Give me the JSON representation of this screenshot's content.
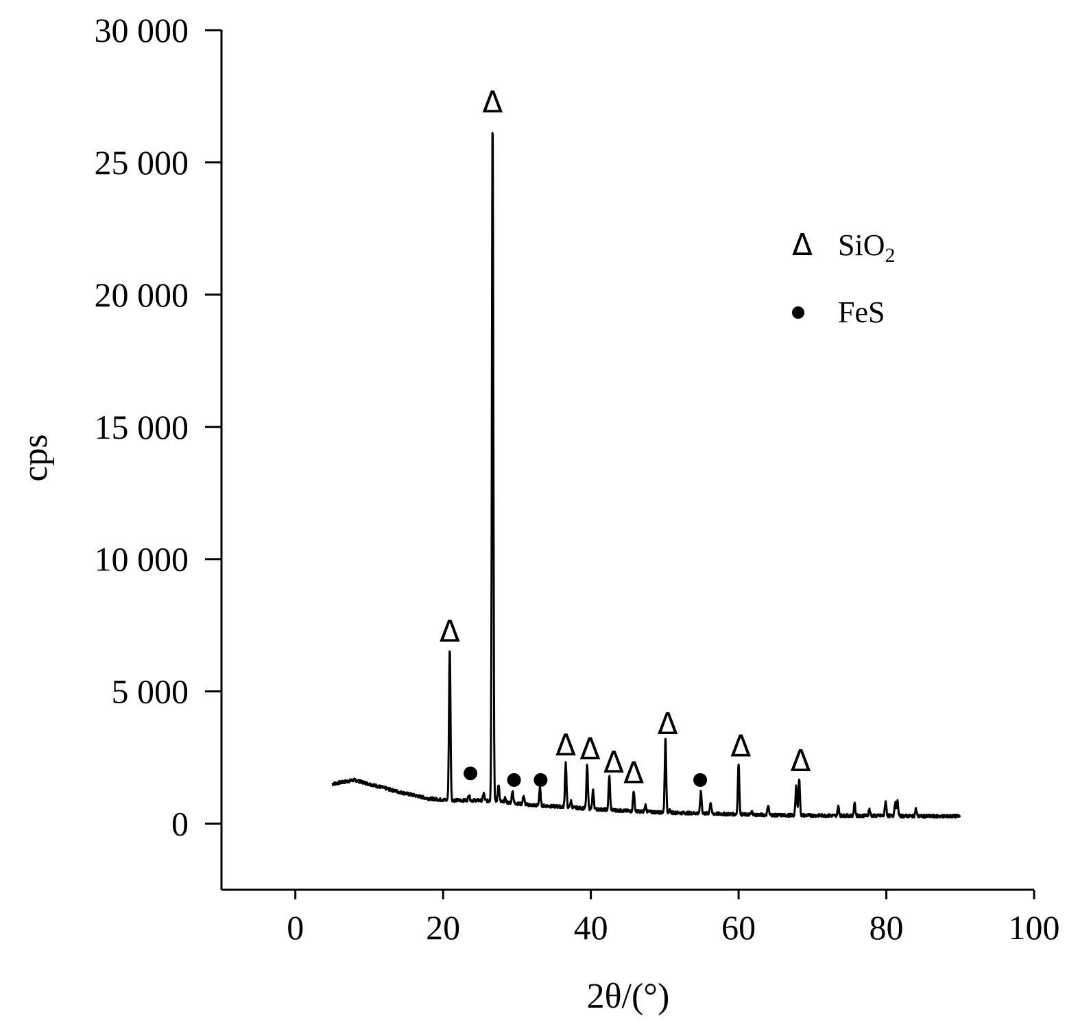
{
  "chart_data": {
    "type": "line",
    "title": "",
    "xlabel": "2θ/(°)",
    "ylabel": "cps",
    "xlim": [
      -10,
      100
    ],
    "ylim": [
      -2500,
      30000
    ],
    "x_ticks": [
      0,
      20,
      40,
      60,
      80,
      100
    ],
    "x_tick_labels": [
      "0",
      "20",
      "40",
      "60",
      "80",
      "100"
    ],
    "y_ticks": [
      0,
      5000,
      10000,
      15000,
      20000,
      25000,
      30000
    ],
    "y_tick_labels": [
      "0",
      "5 000",
      "10 000",
      "15 000",
      "20 000",
      "25 000",
      "30 000"
    ],
    "grid": false,
    "legend_position": "top-right",
    "legend": [
      {
        "marker": "triangle",
        "symbol": "Δ",
        "label": "SiO",
        "subscript": "2"
      },
      {
        "marker": "dot",
        "symbol": "●",
        "label": "FeS"
      }
    ],
    "series": [
      {
        "baseline": [
          [
            5,
            1500
          ],
          [
            8,
            1650
          ],
          [
            10,
            1500
          ],
          [
            14,
            1200
          ],
          [
            18,
            950
          ],
          [
            20,
            900
          ],
          [
            22,
            880
          ],
          [
            25,
            880
          ],
          [
            28,
            820
          ],
          [
            32,
            700
          ],
          [
            36,
            640
          ],
          [
            40,
            560
          ],
          [
            45,
            480
          ],
          [
            50,
            420
          ],
          [
            55,
            390
          ],
          [
            60,
            350
          ],
          [
            65,
            320
          ],
          [
            70,
            310
          ],
          [
            75,
            300
          ],
          [
            80,
            300
          ],
          [
            85,
            280
          ],
          [
            90,
            280
          ]
        ],
        "peaks": [
          [
            20.9,
            6600
          ],
          [
            23.5,
            1100
          ],
          [
            25.5,
            1150
          ],
          [
            26.7,
            26600
          ],
          [
            27.5,
            1500
          ],
          [
            28.4,
            950
          ],
          [
            29.4,
            1250
          ],
          [
            30.9,
            1050
          ],
          [
            33.1,
            1350
          ],
          [
            34.8,
            650
          ],
          [
            36.6,
            2300
          ],
          [
            37.3,
            850
          ],
          [
            39.5,
            2200
          ],
          [
            40.3,
            1250
          ],
          [
            42.5,
            1800
          ],
          [
            45.8,
            1250
          ],
          [
            47.4,
            700
          ],
          [
            50.1,
            3200
          ],
          [
            50.7,
            500
          ],
          [
            54.9,
            1200
          ],
          [
            56.2,
            800
          ],
          [
            60.0,
            2250
          ],
          [
            61.8,
            450
          ],
          [
            64.0,
            700
          ],
          [
            67.8,
            1400
          ],
          [
            68.2,
            1700
          ],
          [
            73.5,
            650
          ],
          [
            75.7,
            750
          ],
          [
            77.7,
            550
          ],
          [
            79.9,
            850
          ],
          [
            81.2,
            800
          ],
          [
            81.5,
            850
          ],
          [
            84.0,
            550
          ]
        ]
      }
    ],
    "annotations": [
      {
        "marker": "triangle",
        "x": 20.9,
        "y": 7300
      },
      {
        "marker": "triangle",
        "x": 26.7,
        "y": 27300
      },
      {
        "marker": "triangle",
        "x": 36.6,
        "y": 3000
      },
      {
        "marker": "triangle",
        "x": 39.9,
        "y": 2850
      },
      {
        "marker": "triangle",
        "x": 43.1,
        "y": 2350
      },
      {
        "marker": "triangle",
        "x": 45.8,
        "y": 1950
      },
      {
        "marker": "triangle",
        "x": 50.4,
        "y": 3800
      },
      {
        "marker": "triangle",
        "x": 60.3,
        "y": 2950
      },
      {
        "marker": "triangle",
        "x": 68.4,
        "y": 2400
      },
      {
        "marker": "dot",
        "x": 23.7,
        "y": 1900
      },
      {
        "marker": "dot",
        "x": 29.6,
        "y": 1650
      },
      {
        "marker": "dot",
        "x": 33.2,
        "y": 1650
      },
      {
        "marker": "dot",
        "x": 54.8,
        "y": 1650
      }
    ]
  }
}
